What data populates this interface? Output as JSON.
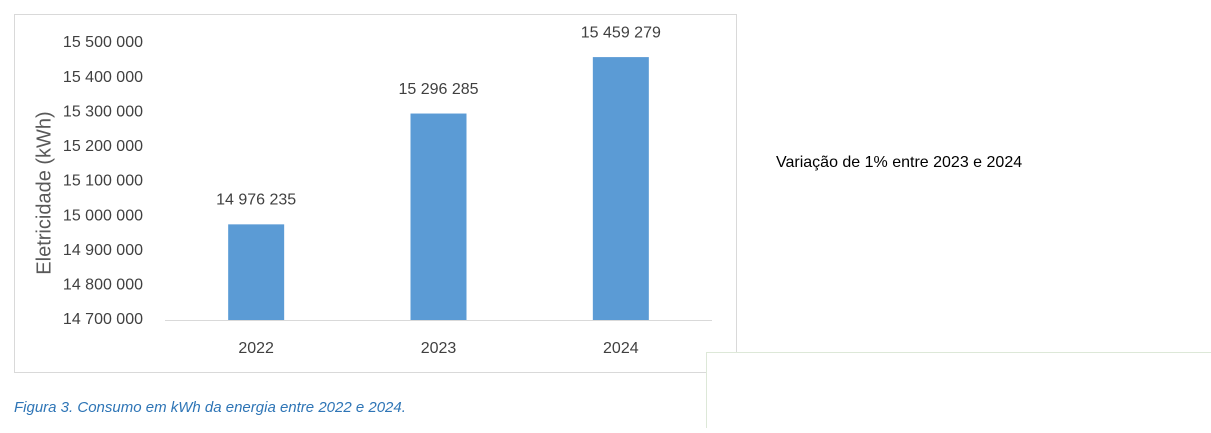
{
  "chart_data": {
    "type": "bar",
    "y_label": "Eletricidade (kWh)",
    "categories": [
      "2022",
      "2023",
      "2024"
    ],
    "values": [
      14976235,
      15296285,
      15459279
    ],
    "value_labels": [
      "14 976 235",
      "15 296 285",
      "15 459 279"
    ],
    "color": "#5b9bd5",
    "ylim": [
      14700000,
      15500000
    ],
    "yticks": [
      {
        "value": 14700000,
        "label": "14 700 000"
      },
      {
        "value": 14800000,
        "label": "14 800 000"
      },
      {
        "value": 14900000,
        "label": "14 900 000"
      },
      {
        "value": 15000000,
        "label": "15 000 000"
      },
      {
        "value": 15100000,
        "label": "15 100 000"
      },
      {
        "value": 15200000,
        "label": "15 200 000"
      },
      {
        "value": 15300000,
        "label": "15 300 000"
      },
      {
        "value": 15400000,
        "label": "15 400 000"
      },
      {
        "value": 15500000,
        "label": "15 500 000"
      }
    ],
    "grid": false
  },
  "note": "Variação de 1% entre 2023 e 2024",
  "caption": "Figura 3. Consumo em kWh da energia entre 2022 e 2024."
}
